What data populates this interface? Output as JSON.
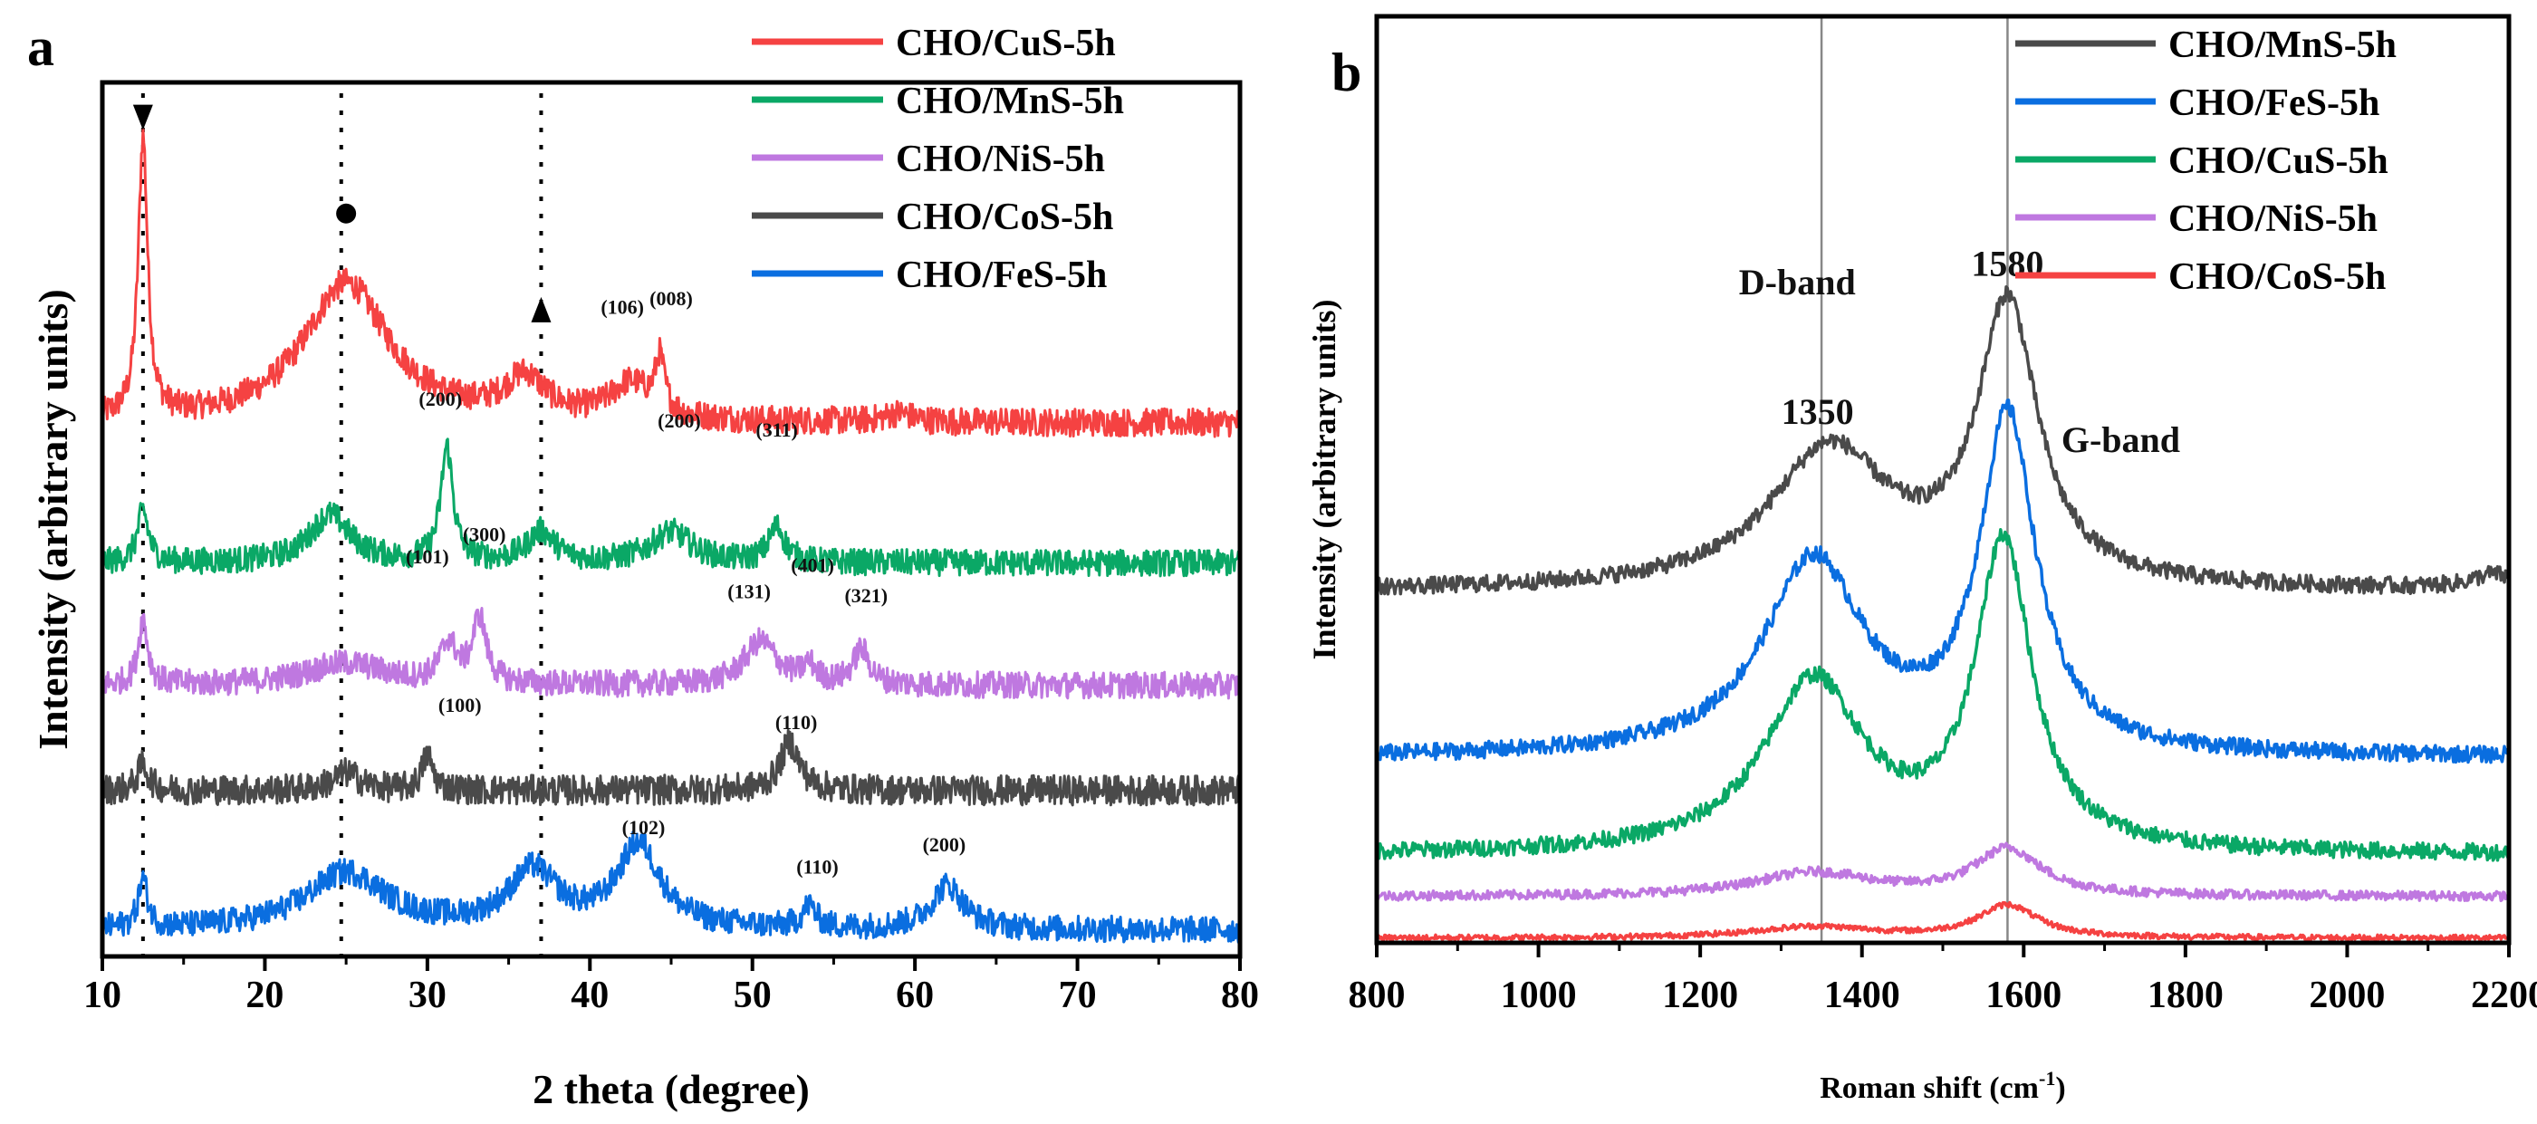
{
  "chart_data": [
    {
      "panel_label": "a",
      "type": "line",
      "xlabel": "2 theta (degree)",
      "ylabel": "Intensity (arbitrary units)",
      "xlim": [
        10,
        80
      ],
      "ylim": [
        0,
        10
      ],
      "xticks": [
        10,
        20,
        30,
        40,
        50,
        60,
        70,
        80
      ],
      "reference_lines": [
        12.5,
        24.7,
        37
      ],
      "markers": [
        {
          "shape": "triangle-down",
          "x": 12.5,
          "y": 9.6
        },
        {
          "shape": "circle",
          "x": 25,
          "y": 8.5
        },
        {
          "shape": "triangle-up",
          "x": 37,
          "y": 7.4
        }
      ],
      "legend_position": "top-right",
      "series": [
        {
          "name": "CHO/CuS-5h",
          "color": "#f54242",
          "baseline": 6.1,
          "noise": 0.16,
          "peaks": [
            [
              12.5,
              3.2,
              0.35
            ],
            [
              25,
              1.6,
              3.2
            ],
            [
              36,
              0.45,
              1.5
            ],
            [
              42.5,
              0.4,
              1.5
            ],
            [
              44.3,
              0.6,
              0.35
            ],
            [
              59,
              0.1,
              1
            ]
          ]
        },
        {
          "name": "CHO/MnS-5h",
          "color": "#0aa866",
          "baseline": 4.5,
          "noise": 0.15,
          "peaks": [
            [
              12.5,
              0.6,
              0.4
            ],
            [
              24,
              0.55,
              1.5
            ],
            [
              31.2,
              1.3,
              0.45
            ],
            [
              37,
              0.35,
              1
            ],
            [
              45,
              0.35,
              1.5
            ],
            [
              51.5,
              0.4,
              0.6
            ]
          ]
        },
        {
          "name": "CHO/NiS-5h",
          "color": "#bf78e0",
          "baseline": 3.1,
          "noise": 0.15,
          "peaks": [
            [
              12.5,
              0.75,
              0.35
            ],
            [
              25,
              0.25,
              3
            ],
            [
              31.3,
              0.45,
              0.6
            ],
            [
              33.2,
              0.75,
              0.5
            ],
            [
              50.5,
              0.5,
              1.2
            ],
            [
              53.5,
              0.2,
              0.5
            ],
            [
              56.7,
              0.4,
              0.6
            ]
          ]
        },
        {
          "name": "CHO/CoS-5h",
          "color": "#4a4a4a",
          "baseline": 1.9,
          "noise": 0.17,
          "peaks": [
            [
              12.5,
              0.3,
              0.4
            ],
            [
              25,
              0.2,
              1
            ],
            [
              30,
              0.4,
              0.4
            ],
            [
              52.3,
              0.55,
              0.7
            ]
          ]
        },
        {
          "name": "CHO/FeS-5h",
          "color": "#0a6ee0",
          "baseline": 0.3,
          "noise": 0.15,
          "peaks": [
            [
              12.5,
              0.55,
              0.35
            ],
            [
              25,
              0.65,
              3
            ],
            [
              36.5,
              0.65,
              1.8
            ],
            [
              43,
              0.95,
              1.6
            ],
            [
              53.5,
              0.25,
              0.5
            ],
            [
              62,
              0.5,
              1.2
            ]
          ]
        }
      ],
      "legend_order": [
        0,
        1,
        2,
        3,
        4
      ],
      "annotations": [
        {
          "text": "(106)",
          "x": 42,
          "y": 7.35
        },
        {
          "text": "(008)",
          "x": 45,
          "y": 7.45
        },
        {
          "text": "(200)",
          "x": 30.8,
          "y": 6.3
        },
        {
          "text": "(200)",
          "x": 45.5,
          "y": 6.05
        },
        {
          "text": "(311)",
          "x": 51.5,
          "y": 5.95
        },
        {
          "text": "(101)",
          "x": 30,
          "y": 4.5
        },
        {
          "text": "(300)",
          "x": 33.5,
          "y": 4.75
        },
        {
          "text": "(131)",
          "x": 49.8,
          "y": 4.1
        },
        {
          "text": "(401)",
          "x": 53.7,
          "y": 4.4
        },
        {
          "text": "(321)",
          "x": 57,
          "y": 4.05
        },
        {
          "text": "(100)",
          "x": 32,
          "y": 2.8
        },
        {
          "text": "(110)",
          "x": 52.7,
          "y": 2.6
        },
        {
          "text": "(102)",
          "x": 43.3,
          "y": 1.4
        },
        {
          "text": "(110)",
          "x": 54,
          "y": 0.95
        },
        {
          "text": "(200)",
          "x": 61.8,
          "y": 1.2
        }
      ]
    },
    {
      "panel_label": "b",
      "type": "line",
      "xlabel": "Roman shift (cm",
      "xlabel_sup": "-1",
      "xlabel_end": ")",
      "ylabel": "Intensity (arbitrary units)",
      "xlim": [
        800,
        2200
      ],
      "ylim": [
        0,
        10
      ],
      "xticks": [
        800,
        1000,
        1200,
        1400,
        1600,
        1800,
        2000,
        2200
      ],
      "reference_lines": [
        1350,
        1580
      ],
      "legend_position": "top-right",
      "series": [
        {
          "name": "CHO/MnS-5h",
          "color": "#4a4a4a",
          "baseline": 3.8,
          "noise": 0.09,
          "peaks": [
            [
              1360,
              1.5,
              90
            ],
            [
              1580,
              3.0,
              45
            ],
            [
              2180,
              0.15,
              30
            ]
          ]
        },
        {
          "name": "CHO/FeS-5h",
          "color": "#0a6ee0",
          "baseline": 2.0,
          "noise": 0.09,
          "peaks": [
            [
              1340,
              2.1,
              75
            ],
            [
              1580,
              3.6,
              42
            ]
          ]
        },
        {
          "name": "CHO/CuS-5h",
          "color": "#0aa866",
          "baseline": 0.95,
          "noise": 0.09,
          "peaks": [
            [
              1340,
              1.85,
              75
            ],
            [
              1575,
              3.3,
              42
            ]
          ]
        },
        {
          "name": "CHO/NiS-5h",
          "color": "#bf78e0",
          "baseline": 0.5,
          "noise": 0.05,
          "peaks": [
            [
              1340,
              0.25,
              90
            ],
            [
              1580,
              0.5,
              50
            ]
          ]
        },
        {
          "name": "CHO/CoS-5h",
          "color": "#f54242",
          "baseline": 0.05,
          "noise": 0.03,
          "peaks": [
            [
              1340,
              0.12,
              90
            ],
            [
              1580,
              0.35,
              45
            ]
          ]
        }
      ],
      "annotations": [
        {
          "text": "D-band",
          "x": 1320,
          "y": 7.0
        },
        {
          "text": "1350",
          "x": 1345,
          "y": 5.6
        },
        {
          "text": "1580",
          "x": 1580,
          "y": 7.2
        },
        {
          "text": "G-band",
          "x": 1720,
          "y": 5.3
        }
      ]
    }
  ]
}
